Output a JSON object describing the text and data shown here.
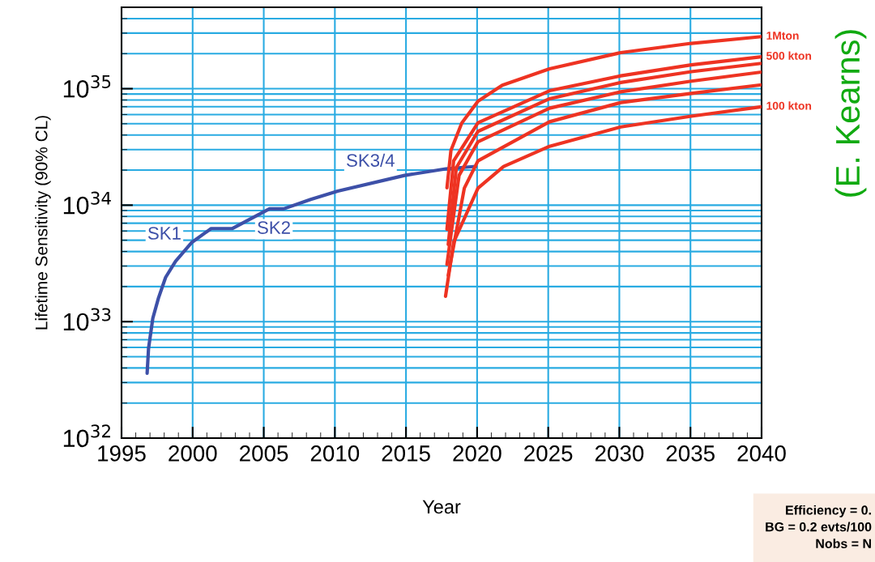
{
  "chart_data": {
    "type": "line",
    "xlabel": "Year",
    "ylabel": "Lifetime Sensitivity (90% CL)",
    "log": "y",
    "grid": true,
    "xlim": [
      1995,
      2040
    ],
    "xticks": [
      1995,
      2000,
      2005,
      2010,
      2015,
      2020,
      2025,
      2030,
      2035,
      2040
    ],
    "ylim": [
      1e+32,
      5e+35
    ],
    "yticks": [
      {
        "value": 1e+32,
        "label": "10$^{32}$"
      },
      {
        "value": 1e+33,
        "label": "10$^{33}$"
      },
      {
        "value": 1e+34,
        "label": "10$^{34}$"
      },
      {
        "value": 1e+35,
        "label": "10$^{35}$"
      }
    ],
    "series": [
      {
        "color": "#3d50a8",
        "x": [
          1996.8,
          1996.9,
          1997.2,
          1997.6,
          1998.1,
          1998.8,
          1999.95,
          2001.3,
          2002.8,
          2005.4,
          2006.4,
          2008.3,
          2010.2,
          2014.9,
          2017.8,
          2019.9
        ],
        "values": [
          3.6e+32,
          5.9e+32,
          1.07e+33,
          1.6e+33,
          2.4e+33,
          3.3e+33,
          4.8e+33,
          6.3e+33,
          6.3e+33,
          9.3e+33,
          9.3e+33,
          1.12e+34,
          1.32e+34,
          1.8e+34,
          2.05e+34,
          2.15e+34
        ]
      },
      {
        "name": "1Mton",
        "color": "#ee3322",
        "x": [
          2017.88,
          2018.16,
          2018.92,
          2020.06,
          2021.77,
          2025.09,
          2030.1,
          2035.05,
          2040
        ],
        "values": [
          1.41e+34,
          2.95e+34,
          5.07e+34,
          7.8e+34,
          1.07e+35,
          1.48e+35,
          2.04e+35,
          2.45e+35,
          2.8e+35
        ]
      },
      {
        "name": "500 kton",
        "color": "#ee3322",
        "x": [
          2017.88,
          2018.35,
          2020.06,
          2025.09,
          2030.1,
          2035.05,
          2040
        ],
        "values": [
          6.2e+33,
          2.4e+34,
          5.1e+34,
          9.6e+34,
          1.29e+35,
          1.6e+35,
          1.88e+35
        ]
      },
      {
        "color": "#ee3322",
        "x": [
          2017.97,
          2018.54,
          2020.06,
          2025.09,
          2030.1,
          2035.05,
          2040
        ],
        "values": [
          4.6e+33,
          2.1e+34,
          4.3e+34,
          8.2e+34,
          1.13e+35,
          1.4e+35,
          1.65e+35
        ]
      },
      {
        "color": "#ee3322",
        "x": [
          2017.88,
          2018.73,
          2020.06,
          2025.09,
          2030.1,
          2035.05,
          2040
        ],
        "values": [
          3.1e+33,
          1.8e+34,
          3.5e+34,
          6.8e+34,
          9.4e+34,
          1.16e+35,
          1.39e+35
        ]
      },
      {
        "color": "#ee3322",
        "x": [
          2017.97,
          2019.1,
          2020.06,
          2025.09,
          2030.1,
          2035.05,
          2040
        ],
        "values": [
          2.5e+33,
          1.4e+34,
          2.4e+34,
          5.2e+34,
          7.6e+34,
          9.1e+34,
          1.08e+35
        ]
      },
      {
        "name": "100 kton",
        "color": "#ee3322",
        "x": [
          2017.78,
          2018.35,
          2020.06,
          2021.86,
          2025.09,
          2030.1,
          2035.05,
          2040
        ],
        "values": [
          1.65e+33,
          4.8e+33,
          1.4e+34,
          2.15e+34,
          3.2e+34,
          4.7e+34,
          5.8e+34,
          7e+34
        ]
      }
    ],
    "annotations": [
      "SK1",
      "SK2",
      "SK3/4",
      "(E. Kearns)",
      "Efficiency = 0.\nBG = 0.2 evts/100\nNobs = N"
    ]
  }
}
